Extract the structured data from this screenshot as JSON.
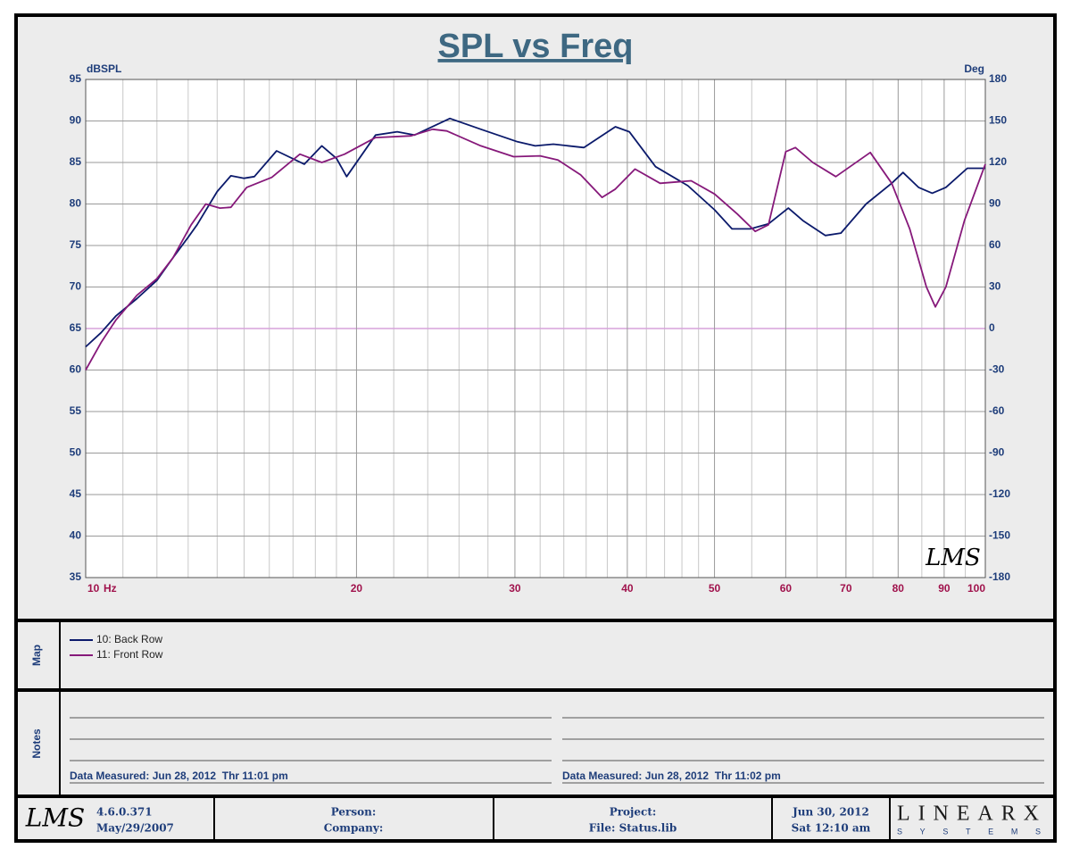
{
  "chart_data": {
    "type": "line",
    "title": "SPL vs Freq",
    "ylabel": "dBSPL",
    "y2label": "Deg",
    "x_unit": "Hz",
    "watermark": "LMS",
    "xlog": true,
    "grid": true,
    "xlim": [
      10,
      100
    ],
    "xticks": [
      10,
      20,
      30,
      40,
      50,
      60,
      70,
      80,
      90,
      100
    ],
    "xminorticks": [
      11,
      12,
      13,
      14,
      15,
      16,
      17,
      18,
      19,
      22,
      24,
      26,
      28,
      32,
      34,
      36,
      38,
      42,
      44,
      46,
      48,
      55,
      65,
      75,
      85,
      95
    ],
    "ylim": [
      35,
      95
    ],
    "yticks": [
      35,
      40,
      45,
      50,
      55,
      60,
      65,
      70,
      75,
      80,
      85,
      90,
      95
    ],
    "y2lim": [
      -180,
      180
    ],
    "y2ticks": [
      -180,
      -150,
      -120,
      -90,
      -60,
      -30,
      0,
      30,
      60,
      90,
      120,
      150,
      180
    ],
    "phase_color": "#d7a2dc",
    "series": [
      {
        "name": "10: Back Row",
        "color": "#0b1a6b",
        "x": [
          10,
          10.4,
          10.8,
          11.4,
          12.0,
          12.5,
          13.0,
          13.3,
          14.0,
          14.5,
          15.0,
          15.4,
          16.3,
          17.5,
          18.3,
          19.0,
          19.5,
          21.0,
          22.2,
          23.2,
          25.4,
          27.5,
          30.2,
          31.6,
          33.1,
          35.8,
          38.8,
          40.2,
          43.0,
          46.7,
          50.0,
          52.3,
          54.8,
          57.4,
          60.4,
          62.7,
          66.4,
          69.1,
          73.7,
          78.7,
          81.0,
          84.3,
          87.3,
          90.4,
          95.5,
          100
        ],
        "values": [
          62.8,
          64.5,
          66.5,
          68.6,
          70.8,
          73.5,
          76.0,
          77.5,
          81.5,
          83.4,
          83.1,
          83.3,
          86.4,
          84.8,
          87.0,
          85.5,
          83.3,
          88.3,
          88.7,
          88.3,
          90.3,
          89.0,
          87.5,
          87.0,
          87.2,
          86.8,
          89.3,
          88.7,
          84.5,
          82.2,
          79.3,
          77.0,
          77.0,
          77.6,
          79.5,
          78.0,
          76.2,
          76.5,
          80.0,
          82.5,
          83.8,
          82.0,
          81.3,
          82.0,
          84.3,
          84.3
        ]
      },
      {
        "name": "11: Front Row",
        "color": "#86197a",
        "x": [
          10,
          10.4,
          10.8,
          11.4,
          12.0,
          12.5,
          13.1,
          13.6,
          14.1,
          14.5,
          15.1,
          16.1,
          17.3,
          18.3,
          19.4,
          21.0,
          23.0,
          24.3,
          25.2,
          27.5,
          29.9,
          32.0,
          33.5,
          35.5,
          37.5,
          38.8,
          40.8,
          43.5,
          47.1,
          50.0,
          53.0,
          55.5,
          57.4,
          60.0,
          61.5,
          64.3,
          68.2,
          74.5,
          78.7,
          82.4,
          86.0,
          88.0,
          90.4,
          94.8,
          100
        ],
        "values": [
          60.0,
          63.3,
          66.0,
          69.0,
          71.0,
          73.5,
          77.5,
          80.0,
          79.5,
          79.6,
          82.0,
          83.2,
          86.0,
          85.0,
          86.0,
          88.0,
          88.2,
          89.0,
          88.8,
          87.0,
          85.7,
          85.8,
          85.3,
          83.5,
          80.8,
          81.8,
          84.2,
          82.5,
          82.8,
          81.2,
          78.8,
          76.7,
          77.5,
          86.3,
          86.8,
          85.0,
          83.3,
          86.2,
          82.5,
          77.0,
          70.0,
          67.6,
          70.0,
          78.0,
          84.8
        ]
      }
    ]
  },
  "map": {
    "label": "Map"
  },
  "notes": {
    "label": "Notes",
    "left": "Data Measured: Jun 28, 2012  Thr 11:01 pm",
    "right": "Data Measured: Jun 28, 2012  Thr 11:02 pm"
  },
  "footer": {
    "logo": "LMS",
    "version": "4.6.0.371",
    "build_date": "May/29/2007",
    "person": "Person:",
    "company": "Company:",
    "project": "Project:",
    "file": "File: Status.lib",
    "date": "Jun 30, 2012",
    "time": "Sat 12:10 am",
    "brand": "LINEARX",
    "brand_sub": "SYSTEMS"
  }
}
